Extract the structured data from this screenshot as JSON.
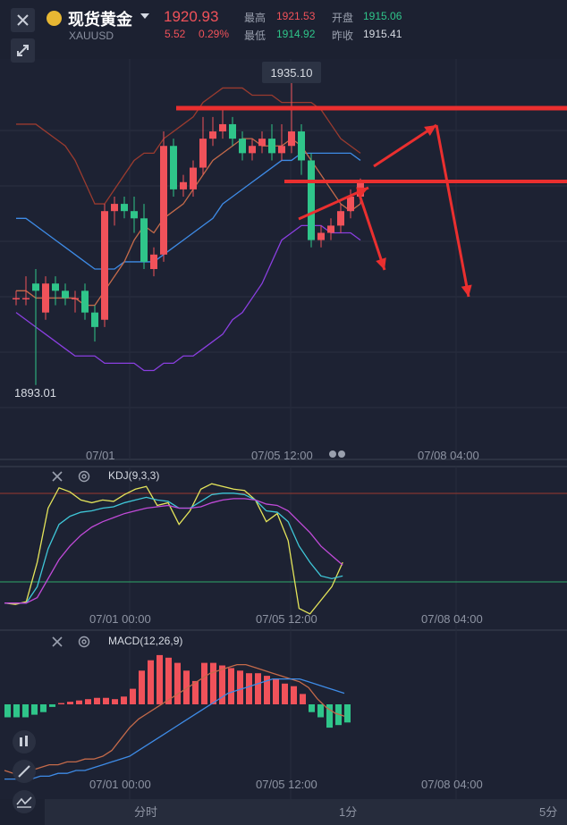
{
  "header": {
    "title": "现货黄金",
    "symbol": "XAUUSD",
    "price": "1920.93",
    "change": "5.52",
    "change_pct": "0.29%",
    "high_label": "最高",
    "high": "1921.53",
    "open_label": "开盘",
    "open": "1915.06",
    "low_label": "最低",
    "low": "1914.92",
    "prev_close_label": "昨收",
    "prev_close": "1915.41"
  },
  "main_chart": {
    "max_label": "1935.10",
    "min_label": "1893.01",
    "x_ticks": [
      "07/01",
      "07/05 12:00",
      "07/08 04:00"
    ]
  },
  "kdj": {
    "title": "KDJ(9,3,3)",
    "x_ticks": [
      "07/01 00:00",
      "07/05 12:00",
      "07/08 04:00"
    ]
  },
  "macd": {
    "title": "MACD(12,26,9)",
    "x_ticks": [
      "07/01 00:00",
      "07/05 12:00",
      "07/08 04:00"
    ]
  },
  "timeframes": [
    "分时",
    "1分",
    "5分"
  ],
  "colors": {
    "up": "#f0525a",
    "down": "#2fc58a",
    "accent": "#e7b733"
  },
  "chart_data": [
    {
      "type": "candlestick",
      "ylim": [
        1890,
        1938
      ],
      "candles": [
        {
          "o": 1905,
          "h": 1906,
          "l": 1904,
          "c": 1905
        },
        {
          "o": 1905,
          "h": 1908,
          "l": 1904,
          "c": 1905
        },
        {
          "o": 1907,
          "h": 1909,
          "l": 1893,
          "c": 1906
        },
        {
          "o": 1903,
          "h": 1908,
          "l": 1902,
          "c": 1907
        },
        {
          "o": 1907,
          "h": 1908,
          "l": 1904,
          "c": 1906
        },
        {
          "o": 1906,
          "h": 1907,
          "l": 1904,
          "c": 1905
        },
        {
          "o": 1905,
          "h": 1906,
          "l": 1903,
          "c": 1905
        },
        {
          "o": 1906,
          "h": 1907,
          "l": 1902,
          "c": 1903
        },
        {
          "o": 1903,
          "h": 1904,
          "l": 1899,
          "c": 1901
        },
        {
          "o": 1902,
          "h": 1918,
          "l": 1901,
          "c": 1917
        },
        {
          "o": 1917,
          "h": 1919,
          "l": 1915,
          "c": 1918
        },
        {
          "o": 1918,
          "h": 1919,
          "l": 1916,
          "c": 1917
        },
        {
          "o": 1917,
          "h": 1919,
          "l": 1914,
          "c": 1916
        },
        {
          "o": 1916,
          "h": 1918,
          "l": 1909,
          "c": 1910
        },
        {
          "o": 1909,
          "h": 1912,
          "l": 1908,
          "c": 1911
        },
        {
          "o": 1911,
          "h": 1928,
          "l": 1910,
          "c": 1926
        },
        {
          "o": 1926,
          "h": 1927,
          "l": 1919,
          "c": 1920
        },
        {
          "o": 1920,
          "h": 1922,
          "l": 1919,
          "c": 1921
        },
        {
          "o": 1920,
          "h": 1924,
          "l": 1919,
          "c": 1923
        },
        {
          "o": 1923,
          "h": 1930,
          "l": 1922,
          "c": 1927
        },
        {
          "o": 1927,
          "h": 1930,
          "l": 1926,
          "c": 1928
        },
        {
          "o": 1928,
          "h": 1931,
          "l": 1927,
          "c": 1929
        },
        {
          "o": 1929,
          "h": 1930,
          "l": 1926,
          "c": 1927
        },
        {
          "o": 1927,
          "h": 1928,
          "l": 1924,
          "c": 1925
        },
        {
          "o": 1925,
          "h": 1927,
          "l": 1924,
          "c": 1926
        },
        {
          "o": 1926,
          "h": 1928,
          "l": 1925,
          "c": 1927
        },
        {
          "o": 1927,
          "h": 1929,
          "l": 1924,
          "c": 1925
        },
        {
          "o": 1925,
          "h": 1929,
          "l": 1924,
          "c": 1926
        },
        {
          "o": 1926,
          "h": 1935.1,
          "l": 1925,
          "c": 1928
        },
        {
          "o": 1928,
          "h": 1929,
          "l": 1922,
          "c": 1924
        },
        {
          "o": 1924,
          "h": 1925,
          "l": 1912,
          "c": 1913
        },
        {
          "o": 1913,
          "h": 1915,
          "l": 1912,
          "c": 1914
        },
        {
          "o": 1914,
          "h": 1916,
          "l": 1913,
          "c": 1915
        },
        {
          "o": 1915,
          "h": 1918,
          "l": 1914,
          "c": 1917
        },
        {
          "o": 1917,
          "h": 1920,
          "l": 1916,
          "c": 1919
        },
        {
          "o": 1919,
          "h": 1921.5,
          "l": 1918,
          "c": 1920.9
        }
      ],
      "boll_upper": [
        1929,
        1929,
        1929,
        1928,
        1927,
        1926,
        1924,
        1921,
        1918,
        1918,
        1920,
        1922,
        1924,
        1925,
        1925,
        1927,
        1928,
        1929,
        1930,
        1932,
        1933,
        1934,
        1934,
        1934,
        1933,
        1933,
        1933,
        1932,
        1932,
        1932,
        1932,
        1931,
        1929,
        1927,
        1926,
        1925
      ],
      "boll_mid": [
        1916,
        1916,
        1915,
        1914,
        1913,
        1912,
        1911,
        1910,
        1909,
        1909,
        1909,
        1910,
        1910,
        1910,
        1910,
        1911,
        1912,
        1913,
        1914,
        1915,
        1916,
        1918,
        1919,
        1920,
        1921,
        1922,
        1923,
        1924,
        1924,
        1925,
        1925,
        1925,
        1925,
        1925,
        1925,
        1924
      ],
      "boll_lower": [
        1903,
        1902,
        1901,
        1900,
        1899,
        1898,
        1897,
        1897,
        1897,
        1896,
        1896,
        1896,
        1896,
        1895,
        1895,
        1896,
        1896,
        1897,
        1897,
        1898,
        1899,
        1900,
        1902,
        1903,
        1905,
        1907,
        1910,
        1913,
        1914,
        1915,
        1915,
        1915,
        1914,
        1914,
        1914,
        1913
      ],
      "ma5": [
        1906,
        1906,
        1905,
        1905,
        1905,
        1905,
        1905,
        1904,
        1904,
        1906,
        1908,
        1910,
        1913,
        1915,
        1914,
        1916,
        1917,
        1918,
        1920,
        1922,
        1924,
        1925,
        1926,
        1927,
        1927,
        1926,
        1926,
        1926,
        1927,
        1926,
        1924,
        1922,
        1920,
        1918,
        1917,
        1918
      ]
    },
    {
      "type": "line",
      "title": "KDJ(9,3,3)",
      "ylim": [
        -10,
        110
      ],
      "series": [
        {
          "color": "#e4e45a",
          "values": [
            10,
            9,
            11,
            40,
            80,
            95,
            92,
            86,
            84,
            86,
            85,
            90,
            94,
            96,
            82,
            84,
            68,
            78,
            94,
            98,
            96,
            94,
            93,
            86,
            70,
            76,
            56,
            6,
            2,
            12,
            22,
            40
          ]
        },
        {
          "color": "#3fc7d8",
          "values": [
            10,
            10,
            10,
            22,
            50,
            68,
            74,
            77,
            78,
            80,
            81,
            84,
            86,
            88,
            86,
            85,
            80,
            80,
            85,
            90,
            91,
            91,
            90,
            86,
            78,
            77,
            70,
            52,
            40,
            30,
            28,
            30
          ]
        },
        {
          "color": "#c04ad8",
          "values": [
            10,
            10,
            10,
            14,
            28,
            42,
            52,
            60,
            66,
            70,
            73,
            76,
            78,
            80,
            81,
            82,
            80,
            80,
            81,
            84,
            86,
            87,
            87,
            86,
            83,
            82,
            78,
            70,
            62,
            52,
            45,
            38
          ]
        }
      ]
    },
    {
      "type": "bar",
      "title": "MACD(12,26,9)",
      "ylim": [
        -3,
        3
      ],
      "hist": [
        -0.5,
        -0.5,
        -0.5,
        -0.4,
        -0.3,
        -0.1,
        0.05,
        0.1,
        0.15,
        0.2,
        0.25,
        0.25,
        0.2,
        0.3,
        0.6,
        1.3,
        1.7,
        1.9,
        1.8,
        1.6,
        1.3,
        0.9,
        1.6,
        1.6,
        1.5,
        1.4,
        1.3,
        1.2,
        1.2,
        1.1,
        1.0,
        0.8,
        0.7,
        0.4,
        -0.3,
        -0.5,
        -0.9,
        -0.8,
        -0.7
      ],
      "dif": [
        -2.0,
        -2.1,
        -2.1,
        -2.0,
        -1.9,
        -1.8,
        -1.8,
        -1.7,
        -1.7,
        -1.6,
        -1.6,
        -1.5,
        -1.3,
        -0.9,
        -0.5,
        -0.2,
        0.0,
        0.2,
        0.4,
        0.6,
        0.8,
        1.0,
        1.2,
        1.4,
        1.5,
        1.6,
        1.7,
        1.7,
        1.6,
        1.5,
        1.4,
        1.3,
        1.2,
        1.1,
        0.9,
        0.5,
        0.2,
        0.0,
        -0.1
      ],
      "dea": [
        -2.3,
        -2.3,
        -2.3,
        -2.3,
        -2.2,
        -2.2,
        -2.1,
        -2.1,
        -2.0,
        -2.0,
        -1.9,
        -1.8,
        -1.7,
        -1.6,
        -1.5,
        -1.3,
        -1.1,
        -0.9,
        -0.7,
        -0.5,
        -0.3,
        -0.1,
        0.1,
        0.3,
        0.5,
        0.7,
        0.8,
        0.9,
        1.0,
        1.1,
        1.2,
        1.2,
        1.2,
        1.2,
        1.1,
        1.0,
        0.9,
        0.8,
        0.7
      ]
    }
  ]
}
